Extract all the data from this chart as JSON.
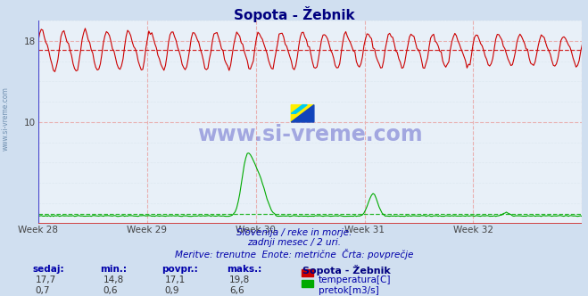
{
  "title": "Sopota - Žebnik",
  "bg_color": "#d0dff0",
  "plot_bg_color": "#e8f0f8",
  "grid_color": "#e0a0a0",
  "grid_y_color": "#c8d8e8",
  "border_left_color": "#4444cc",
  "border_bottom_color": "#cc2222",
  "title_color": "#000080",
  "text_color": "#0000aa",
  "weeks": [
    "Week 28",
    "Week 29",
    "Week 30",
    "Week 31",
    "Week 32"
  ],
  "ylim": [
    0,
    20
  ],
  "ytick_positions": [
    10,
    18
  ],
  "ytick_labels": [
    "10",
    "18"
  ],
  "temp_color": "#cc0000",
  "flow_color": "#00aa00",
  "avg_temp": 17.1,
  "avg_flow": 0.9,
  "n_points": 360,
  "subtitle1": "Slovenija / reke in morje.",
  "subtitle2": "zadnji mesec / 2 uri.",
  "subtitle3": "Meritve: trenutne  Enote: metrične  Črta: povprečje",
  "table_headers": [
    "sedaj:",
    "min.:",
    "povpr.:",
    "maks.:"
  ],
  "temp_row": [
    "17,7",
    "14,8",
    "17,1",
    "19,8"
  ],
  "flow_row": [
    "0,7",
    "0,6",
    "0,9",
    "6,6"
  ],
  "station_label": "Sopota - Žebnik",
  "temp_label": "temperatura[C]",
  "flow_label": "pretok[m3/s]"
}
